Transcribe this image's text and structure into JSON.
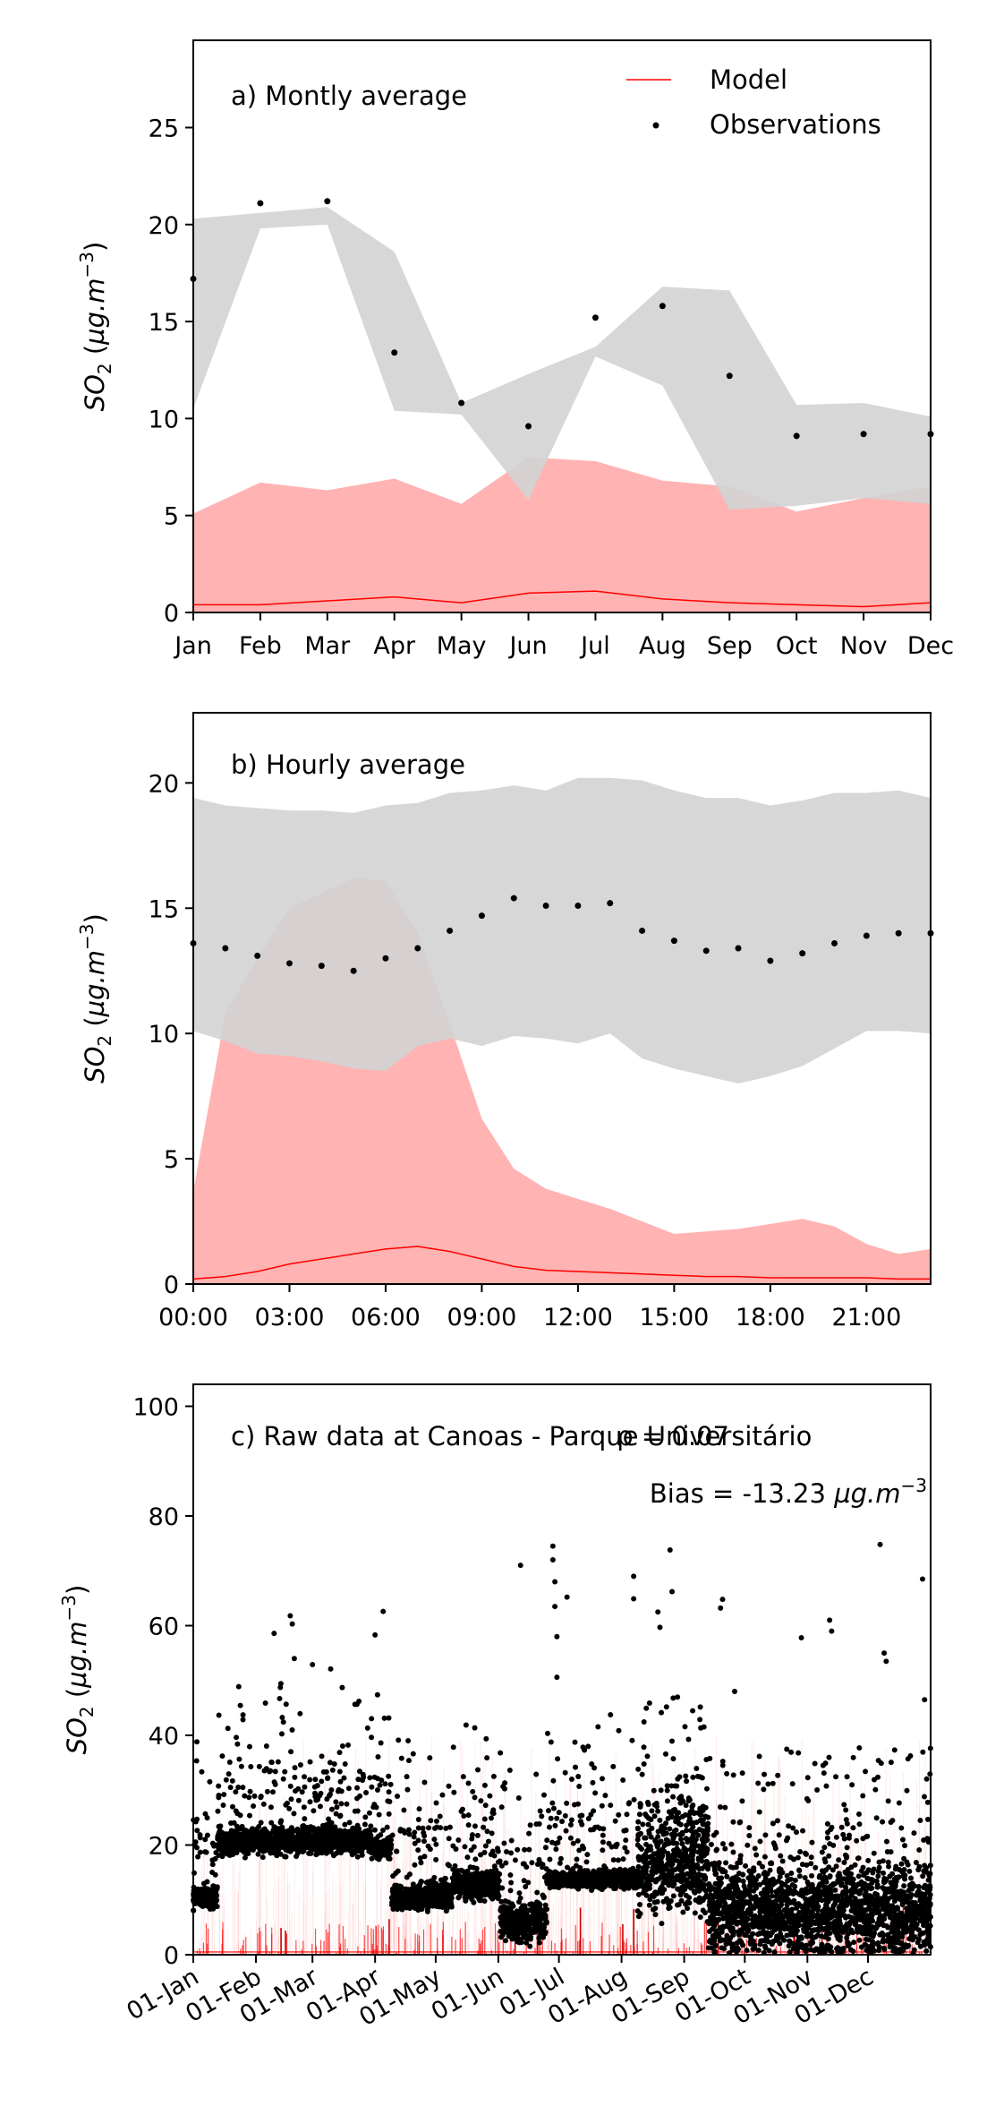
{
  "chart_data": [
    {
      "type": "area",
      "panel_label": "a) Montly average",
      "ylabel": "SO2 (µg.m−3)",
      "ylim": [
        0,
        29.5
      ],
      "yticks": [
        0,
        5,
        10,
        15,
        20,
        25
      ],
      "categories": [
        "Jan",
        "Feb",
        "Mar",
        "Apr",
        "May",
        "Jun",
        "Jul",
        "Aug",
        "Sep",
        "Oct",
        "Nov",
        "Dec"
      ],
      "legend": {
        "placement": "top-right",
        "entries": [
          "Model",
          "Observations"
        ]
      },
      "series": [
        {
          "name": "Observations",
          "kind": "points",
          "color": "#000000",
          "values": [
            17.2,
            21.1,
            21.2,
            13.4,
            10.8,
            9.6,
            15.2,
            15.8,
            12.2,
            9.1,
            9.2,
            9.2
          ]
        },
        {
          "name": "Model",
          "kind": "line",
          "color": "#ff0000",
          "values": [
            0.4,
            0.4,
            0.6,
            0.8,
            0.5,
            1.0,
            1.1,
            0.7,
            0.5,
            0.4,
            0.3,
            0.5
          ]
        },
        {
          "kind": "band",
          "color": "#ffb3b3",
          "low": [
            0,
            0,
            0,
            0,
            0,
            0,
            0,
            0,
            0,
            0,
            0,
            0
          ],
          "high": [
            5.1,
            6.7,
            6.3,
            6.9,
            5.6,
            8.0,
            7.8,
            6.8,
            6.5,
            5.2,
            5.9,
            6.5
          ]
        },
        {
          "kind": "band",
          "color": "#d3d3d3",
          "low": [
            10.5,
            19.8,
            20.0,
            10.4,
            10.2,
            5.8,
            13.2,
            11.7,
            5.3,
            5.5,
            5.9,
            5.6
          ],
          "high": [
            20.3,
            20.6,
            20.9,
            18.6,
            10.8,
            12.3,
            13.7,
            16.8,
            16.6,
            10.7,
            10.8,
            10.1
          ]
        }
      ]
    },
    {
      "type": "area",
      "panel_label": "b) Hourly average",
      "ylabel": "SO2 (µg.m−3)",
      "ylim": [
        0,
        22.8
      ],
      "yticks": [
        0,
        5,
        10,
        15,
        20
      ],
      "x": [
        0,
        1,
        2,
        3,
        4,
        5,
        6,
        7,
        8,
        9,
        10,
        11,
        12,
        13,
        14,
        15,
        16,
        17,
        18,
        19,
        20,
        21,
        22,
        23
      ],
      "xticks": [
        0,
        3,
        6,
        9,
        12,
        15,
        18,
        21
      ],
      "xticklabels": [
        "00:00",
        "03:00",
        "06:00",
        "09:00",
        "12:00",
        "15:00",
        "18:00",
        "21:00"
      ],
      "xlim": [
        0,
        23
      ],
      "series": [
        {
          "name": "Observations",
          "kind": "points",
          "color": "#000000",
          "values": [
            13.6,
            13.4,
            13.1,
            12.8,
            12.7,
            12.5,
            13.0,
            13.4,
            14.1,
            14.7,
            15.4,
            15.1,
            15.1,
            15.2,
            14.1,
            13.7,
            13.3,
            13.4,
            12.9,
            13.2,
            13.6,
            13.9,
            14.0,
            14.0
          ]
        },
        {
          "name": "Model",
          "kind": "line",
          "color": "#ff0000",
          "values": [
            0.2,
            0.3,
            0.5,
            0.8,
            1.0,
            1.2,
            1.4,
            1.5,
            1.3,
            1.0,
            0.7,
            0.55,
            0.5,
            0.45,
            0.4,
            0.35,
            0.3,
            0.3,
            0.25,
            0.25,
            0.25,
            0.25,
            0.2,
            0.2
          ]
        },
        {
          "kind": "band",
          "color": "#ffb3b3",
          "low": [
            0,
            0,
            0,
            0,
            0,
            0,
            0,
            0,
            0,
            0,
            0,
            0,
            0,
            0,
            0,
            0,
            0,
            0,
            0,
            0,
            0,
            0,
            0,
            0
          ],
          "high": [
            3.7,
            10.8,
            13.0,
            15.0,
            15.6,
            16.2,
            16.1,
            14.0,
            10.4,
            6.6,
            4.6,
            3.8,
            3.4,
            3.0,
            2.5,
            2.0,
            2.1,
            2.2,
            2.4,
            2.6,
            2.3,
            1.6,
            1.2,
            1.4
          ]
        },
        {
          "kind": "band",
          "color": "#d3d3d3",
          "low": [
            10.1,
            9.7,
            9.2,
            9.1,
            8.9,
            8.6,
            8.5,
            9.5,
            9.8,
            9.5,
            9.9,
            9.8,
            9.6,
            10.0,
            9.0,
            8.6,
            8.3,
            8.0,
            8.3,
            8.7,
            9.4,
            10.1,
            10.1,
            10.0
          ],
          "high": [
            19.4,
            19.1,
            19.0,
            18.9,
            18.9,
            18.8,
            19.1,
            19.2,
            19.6,
            19.7,
            19.9,
            19.7,
            20.2,
            20.2,
            20.1,
            19.7,
            19.4,
            19.4,
            19.1,
            19.3,
            19.6,
            19.6,
            19.7,
            19.4
          ]
        }
      ]
    },
    {
      "type": "scatter",
      "panel_label": "c) Raw data at Canoas - Parque Universitário",
      "stat_r": "ρ = 0.07",
      "stat_bias": "Bias = -13.23 µg.m−3",
      "ylabel": "SO2 (µg.m−3)",
      "ylim": [
        0,
        104
      ],
      "yticks": [
        0,
        20,
        40,
        60,
        80,
        100
      ],
      "xlim_days": [
        0,
        365
      ],
      "xtick_days": [
        0,
        31,
        59,
        90,
        120,
        151,
        181,
        212,
        243,
        273,
        304,
        334
      ],
      "xticklabels": [
        "01-Jan",
        "01-Feb",
        "01-Mar",
        "01-Apr",
        "01-May",
        "01-Jun",
        "01-Jul",
        "01-Aug",
        "01-Sep",
        "01-Oct",
        "01-Nov",
        "01-Dec"
      ],
      "observation_levels": [
        {
          "from_day": 0,
          "to_day": 12,
          "level": 10.5,
          "spread": 1.5
        },
        {
          "from_day": 12,
          "to_day": 88,
          "level": 20.8,
          "spread": 1.8
        },
        {
          "from_day": 88,
          "to_day": 98,
          "level": 19.5,
          "spread": 1.5
        },
        {
          "from_day": 98,
          "to_day": 128,
          "level": 10.6,
          "spread": 1.6
        },
        {
          "from_day": 128,
          "to_day": 152,
          "level": 12.8,
          "spread": 2.0
        },
        {
          "from_day": 152,
          "to_day": 175,
          "level": 6.0,
          "spread": 2.5
        },
        {
          "from_day": 175,
          "to_day": 220,
          "level": 13.8,
          "spread": 1.2
        },
        {
          "from_day": 220,
          "to_day": 255,
          "level": 17.0,
          "spread": 7.0
        },
        {
          "from_day": 255,
          "to_day": 365,
          "level": 8.0,
          "spread": 6.0
        }
      ],
      "observation_peaks": [
        {
          "day": 40,
          "value": 58.6
        },
        {
          "day": 48,
          "value": 61.8
        },
        {
          "day": 49,
          "value": 60.3
        },
        {
          "day": 50,
          "value": 54.0
        },
        {
          "day": 59,
          "value": 52.9
        },
        {
          "day": 68,
          "value": 52.1
        },
        {
          "day": 82,
          "value": 46.2
        },
        {
          "day": 90,
          "value": 58.3
        },
        {
          "day": 94,
          "value": 62.6
        },
        {
          "day": 152,
          "value": 36.8
        },
        {
          "day": 162,
          "value": 71.0
        },
        {
          "day": 178,
          "value": 74.5
        },
        {
          "day": 178,
          "value": 72.0
        },
        {
          "day": 179,
          "value": 68.0
        },
        {
          "day": 179,
          "value": 63.5
        },
        {
          "day": 180,
          "value": 58.0
        },
        {
          "day": 180,
          "value": 50.6
        },
        {
          "day": 185,
          "value": 65.2
        },
        {
          "day": 218,
          "value": 69.0
        },
        {
          "day": 218,
          "value": 64.9
        },
        {
          "day": 230,
          "value": 62.5
        },
        {
          "day": 231,
          "value": 59.7
        },
        {
          "day": 236,
          "value": 73.8
        },
        {
          "day": 237,
          "value": 66.2
        },
        {
          "day": 261,
          "value": 63.2
        },
        {
          "day": 262,
          "value": 64.8
        },
        {
          "day": 268,
          "value": 48.0
        },
        {
          "day": 301,
          "value": 57.8
        },
        {
          "day": 315,
          "value": 61.0
        },
        {
          "day": 316,
          "value": 59.0
        },
        {
          "day": 340,
          "value": 74.8
        },
        {
          "day": 342,
          "value": 55.0
        },
        {
          "day": 343,
          "value": 53.5
        },
        {
          "day": 361,
          "value": 68.5
        },
        {
          "day": 362,
          "value": 46.5
        }
      ],
      "model_level": 0.5,
      "model_spikes_max": 40,
      "colors": {
        "observations": "#000000",
        "model": "#ff0000"
      }
    }
  ]
}
